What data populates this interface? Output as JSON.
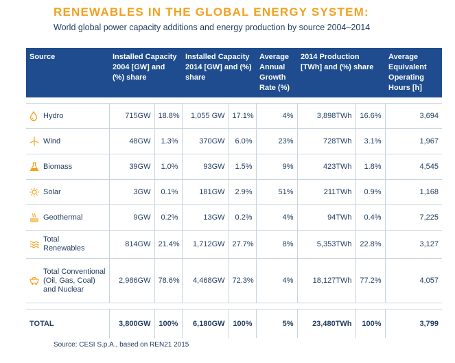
{
  "header": {
    "title": "RENEWABLES IN THE GLOBAL ENERGY SYSTEM:",
    "subtitle": "World global power capacity additions and energy production by source 2004–2014"
  },
  "table": {
    "columns": [
      "Source",
      "Installed Capacity 2004 [GW] and (%) share",
      "Installed Capacity 2014 [GW] and (%) share",
      "Average Annual Growth Rate (%)",
      "2014 Production [TWh] and (%) share",
      "Average Equivalent Operating Hours [h]"
    ],
    "rows": [
      {
        "source": "Hydro",
        "icon": "water-drop-icon",
        "cap2004": "715GW",
        "share2004": "18.8%",
        "cap2014": "1,055 GW",
        "share2014": "17.1%",
        "growth": "4%",
        "production": "3,898TWh",
        "prod_share": "16.6%",
        "hours": "3,694"
      },
      {
        "source": "Wind",
        "icon": "wind-turbine-icon",
        "cap2004": "48GW",
        "share2004": "1.3%",
        "cap2014": "370GW",
        "share2014": "6.0%",
        "growth": "23%",
        "production": "728TWh",
        "prod_share": "3.1%",
        "hours": "1,967"
      },
      {
        "source": "Biomass",
        "icon": "flask-icon",
        "cap2004": "39GW",
        "share2004": "1.0%",
        "cap2014": "93GW",
        "share2014": "1.5%",
        "growth": "9%",
        "production": "423TWh",
        "prod_share": "1.8%",
        "hours": "4,545"
      },
      {
        "source": "Solar",
        "icon": "sun-icon",
        "cap2004": "3GW",
        "share2004": "0.1%",
        "cap2014": "181GW",
        "share2014": "2.9%",
        "growth": "51%",
        "production": "211TWh",
        "prod_share": "0.9%",
        "hours": "1,168"
      },
      {
        "source": "Geothermal",
        "icon": "geothermal-icon",
        "cap2004": "9GW",
        "share2004": "0.2%",
        "cap2014": "13GW",
        "share2014": "0.2%",
        "growth": "4%",
        "production": "94TWh",
        "prod_share": "0.4%",
        "hours": "7,225"
      },
      {
        "source_line1": "Total",
        "source_line2": "Renewables",
        "icon": "waves-icon",
        "cap2004": "814GW",
        "share2004": "21.4%",
        "cap2014": "1,712GW",
        "share2014": "27.7%",
        "growth": "8%",
        "production": "5,353TWh",
        "prod_share": "22.8%",
        "hours": "3,127"
      },
      {
        "source_line1": "Total Conventional",
        "source_line2": "(Oil, Gas, Coal)",
        "source_line3": "and Nuclear",
        "icon": "mine-cart-icon",
        "cap2004": "2,986GW",
        "share2004": "78.6%",
        "cap2014": "4,468GW",
        "share2014": "72.3%",
        "growth": "4%",
        "production": "18,127TWh",
        "prod_share": "77.2%",
        "hours": "4,057"
      }
    ],
    "total": {
      "source": "TOTAL",
      "cap2004": "3,800GW",
      "share2004": "100%",
      "cap2014": "6,180GW",
      "share2014": "100%",
      "growth": "5%",
      "production": "23,480TWh",
      "prod_share": "100%",
      "hours": "3,799"
    }
  },
  "footer": {
    "note": "Source: CESI S.p.A., based on REN21 2015"
  },
  "colors": {
    "title": "#f2a11d",
    "header_bg": "#1e4c8e",
    "text": "#1d3a5f",
    "icon": "#f2a11d"
  }
}
